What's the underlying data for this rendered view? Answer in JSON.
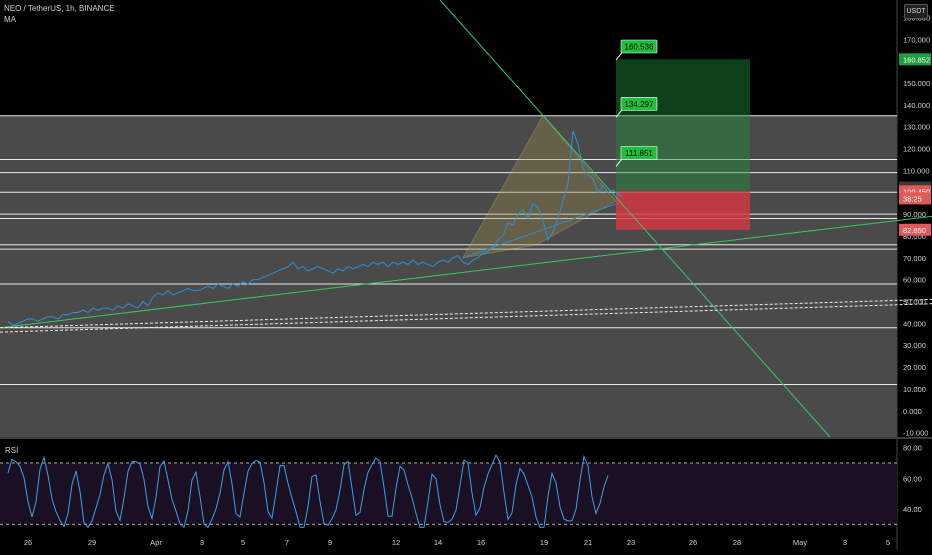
{
  "header": {
    "symbol_line": "NEO / TetherUS, 1h, BINANCE",
    "indicator": "MA"
  },
  "unit_badge": "USDT",
  "rsi_panel": {
    "label": "RSI",
    "ticks": [
      "80.00",
      "60.00",
      "40.00"
    ],
    "levels": [
      70,
      30
    ],
    "ylim": [
      25,
      85
    ]
  },
  "price_labels": [
    {
      "text": "102.133",
      "value": 102.133,
      "bg": "#3a3a3a"
    },
    {
      "text": "100.450",
      "value": 100.45,
      "bg": "#e05a5a"
    },
    {
      "text": "38:25",
      "value": 97.2,
      "bg": "#e05a5a"
    },
    {
      "text": "160.852",
      "value": 160.852,
      "bg": "#1e9e3c"
    },
    {
      "text": "82.850",
      "value": 82.85,
      "bg": "#e05a5a"
    }
  ],
  "targets": [
    "160.536",
    "134.297",
    "111.851"
  ],
  "colors": {
    "background": "#000000",
    "band": "#4a4a4a",
    "profit_zone": "#1f8f3b",
    "loss_zone": "#d8363e",
    "price_line": "#2c8fd8",
    "triangle": "#9b8a45",
    "trendline": "#36c96a"
  },
  "chart_data": {
    "type": "line",
    "ylim": [
      -12,
      188
    ],
    "y_ticks": [
      "180.000",
      "170.000",
      "160.000",
      "150.000",
      "140.000",
      "130.000",
      "120.000",
      "110.000",
      "100.000",
      "90.000",
      "80.000",
      "70.000",
      "60.000",
      "50.000",
      "40.000",
      "30.000",
      "20.000",
      "10.000",
      "0.000",
      "-10.000"
    ],
    "x_ticks": [
      "26",
      "29",
      "Apr",
      "3",
      "5",
      "7",
      "9",
      "12",
      "14",
      "16",
      "19",
      "21",
      "23",
      "26",
      "28",
      "May",
      "3",
      "5"
    ],
    "horizontal_levels": [
      135,
      115,
      109,
      100,
      90,
      88,
      76,
      74,
      58,
      38,
      12
    ],
    "series": [
      {
        "x": [
          0,
          5,
          10,
          15,
          20,
          25,
          30,
          35,
          40,
          45,
          50,
          55,
          60,
          65,
          70,
          75,
          80,
          85,
          90,
          95,
          100,
          105,
          110,
          115,
          120,
          125,
          130,
          135,
          140,
          145,
          150,
          155,
          160,
          165,
          170,
          175,
          180,
          185,
          190,
          195,
          200,
          205,
          210,
          215,
          220,
          225,
          230,
          235,
          240,
          245,
          250,
          255,
          260,
          265,
          270,
          275,
          280,
          285,
          290,
          295,
          300,
          305,
          310,
          315,
          320,
          325,
          330,
          335,
          340,
          345,
          350,
          355,
          360,
          365,
          370,
          375,
          380,
          385,
          390,
          395,
          400,
          405,
          410,
          415,
          420,
          425,
          430,
          435,
          440,
          445,
          450,
          455,
          460,
          465,
          470,
          475,
          480,
          485,
          490,
          495,
          500,
          505,
          510,
          515,
          520,
          525,
          530,
          535,
          540,
          545,
          550,
          555,
          560,
          565,
          570,
          575,
          580,
          585,
          590,
          595,
          600,
          605,
          610,
          615
        ],
        "y": [
          41,
          39,
          40,
          41,
          42,
          42,
          41,
          42,
          43,
          43,
          42,
          44,
          44,
          45,
          45,
          46,
          45,
          47,
          46,
          47,
          47,
          46,
          48,
          47,
          49,
          48,
          47,
          50,
          48,
          52,
          54,
          53,
          55,
          53,
          54,
          55,
          56,
          55,
          55,
          56,
          57,
          56,
          58,
          57,
          56,
          58,
          57,
          59,
          58,
          60,
          60,
          61,
          62,
          63,
          64,
          65,
          66,
          68,
          65,
          66,
          64,
          65,
          66,
          65,
          64,
          63,
          65,
          64,
          66,
          65,
          66,
          67,
          66,
          68,
          67,
          68,
          66,
          68,
          67,
          68,
          67,
          69,
          67,
          68,
          67,
          66,
          68,
          69,
          68,
          70,
          71,
          68,
          67,
          69,
          70,
          72,
          73,
          75,
          78,
          80,
          86,
          85,
          90,
          92,
          88,
          95,
          93,
          87,
          78,
          82,
          88,
          96,
          104,
          128,
          122,
          111,
          108,
          106,
          100,
          103,
          100,
          101,
          99,
          98
        ]
      }
    ]
  }
}
